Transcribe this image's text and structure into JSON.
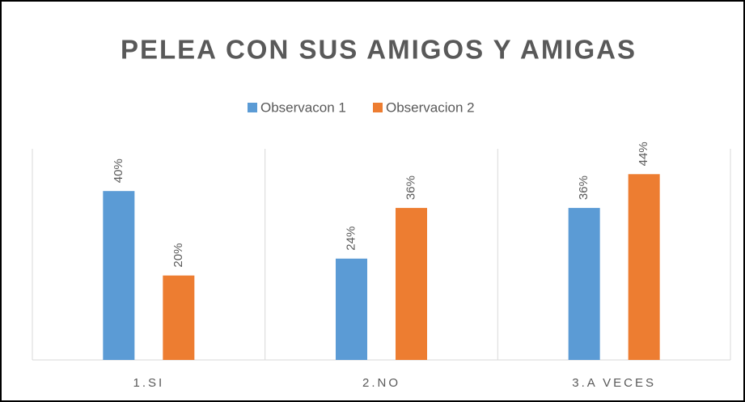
{
  "chart_data": {
    "type": "bar",
    "title": "PELEA CON SUS AMIGOS Y AMIGAS",
    "categories": [
      "1.SI",
      "2.NO",
      "3.A VECES"
    ],
    "series": [
      {
        "name": "Observacon 1",
        "color": "#5b9bd5",
        "values": [
          40,
          24,
          36
        ],
        "value_labels": [
          "40%",
          "24%",
          "36%"
        ]
      },
      {
        "name": "Observacion 2",
        "color": "#ed7d31",
        "values": [
          20,
          36,
          44
        ],
        "value_labels": [
          "20%",
          "36%",
          "44%"
        ]
      }
    ],
    "ylim": [
      0,
      50
    ],
    "legend": "top"
  }
}
